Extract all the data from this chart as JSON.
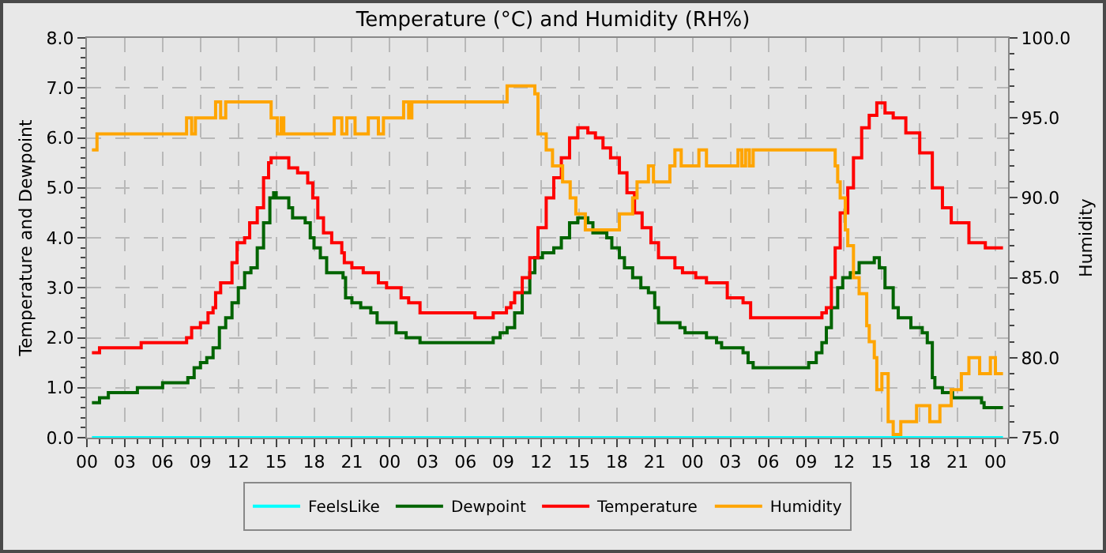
{
  "chart_data": {
    "type": "step",
    "title": "Temperature (°C) and Humidity (RH%)",
    "ylabel": "Temperature and Dewpoint",
    "y2label": "Humidity",
    "xlim": [
      0,
      73
    ],
    "xticks": [
      {
        "value": 0,
        "label": "00"
      },
      {
        "value": 3,
        "label": "03"
      },
      {
        "value": 6,
        "label": "06"
      },
      {
        "value": 9,
        "label": "09"
      },
      {
        "value": 12,
        "label": "12"
      },
      {
        "value": 15,
        "label": "15"
      },
      {
        "value": 18,
        "label": "18"
      },
      {
        "value": 21,
        "label": "21"
      },
      {
        "value": 24,
        "label": "00"
      },
      {
        "value": 27,
        "label": "03"
      },
      {
        "value": 30,
        "label": "06"
      },
      {
        "value": 33,
        "label": "09"
      },
      {
        "value": 36,
        "label": "12"
      },
      {
        "value": 39,
        "label": "15"
      },
      {
        "value": 42,
        "label": "18"
      },
      {
        "value": 45,
        "label": "21"
      },
      {
        "value": 48,
        "label": "00"
      },
      {
        "value": 51,
        "label": "03"
      },
      {
        "value": 54,
        "label": "06"
      },
      {
        "value": 57,
        "label": "09"
      },
      {
        "value": 60,
        "label": "12"
      },
      {
        "value": 63,
        "label": "15"
      },
      {
        "value": 66,
        "label": "18"
      },
      {
        "value": 69,
        "label": "21"
      },
      {
        "value": 72,
        "label": "00"
      }
    ],
    "ylim": [
      0,
      8
    ],
    "yticks": [
      {
        "value": 0,
        "label": "0.0"
      },
      {
        "value": 1,
        "label": "1.0"
      },
      {
        "value": 2,
        "label": "2.0"
      },
      {
        "value": 3,
        "label": "3.0"
      },
      {
        "value": 4,
        "label": "4.0"
      },
      {
        "value": 5,
        "label": "5.0"
      },
      {
        "value": 6,
        "label": "6.0"
      },
      {
        "value": 7,
        "label": "7.0"
      },
      {
        "value": 8,
        "label": "8.0"
      }
    ],
    "y2lim": [
      75,
      100
    ],
    "y2ticks": [
      {
        "value": 75,
        "label": "75.0"
      },
      {
        "value": 80,
        "label": "80.0"
      },
      {
        "value": 85,
        "label": "85.0"
      },
      {
        "value": 90,
        "label": "90.0"
      },
      {
        "value": 95,
        "label": "95.0"
      },
      {
        "value": 100,
        "label": "100.0"
      }
    ],
    "grid": true,
    "legend": "bottom",
    "series": [
      {
        "name": "FeelsLike",
        "color": "#00ffff",
        "x": [
          0.4,
          72.6
        ],
        "values": [
          0,
          0
        ]
      },
      {
        "name": "Dewpoint",
        "color": "#006400",
        "x": [
          0.4,
          1.0,
          1.7,
          4,
          6,
          8,
          8.5,
          9,
          9.5,
          10,
          10.5,
          11,
          11.5,
          12,
          12.5,
          13,
          13.5,
          14,
          14.5,
          14.8,
          15,
          16,
          16.3,
          17.3,
          17.7,
          18,
          18.5,
          19,
          20.3,
          20.5,
          21,
          21.7,
          22.5,
          23,
          24.5,
          25.3,
          26.4,
          32.2,
          32.75,
          33.3,
          33.9,
          34.5,
          35.1,
          35.5,
          36.1,
          37,
          37.6,
          38.25,
          38.9,
          39.7,
          40.1,
          41.2,
          41.6,
          42.2,
          42.6,
          43.25,
          43.9,
          44.5,
          45,
          45.3,
          47,
          47.4,
          49.1,
          49.9,
          50.3,
          52,
          52.4,
          52.8,
          57.2,
          57.8,
          58.25,
          58.6,
          59,
          59.5,
          59.9,
          60.5,
          61.2,
          62.4,
          62.8,
          63.25,
          63.9,
          64.3,
          65.3,
          66.2,
          66.6,
          67,
          67.2,
          67.8,
          68.6,
          70.9,
          71.1,
          72.6
        ],
        "values": [
          0.7,
          0.8,
          0.9,
          1.0,
          1.1,
          1.2,
          1.4,
          1.5,
          1.6,
          1.8,
          2.2,
          2.4,
          2.7,
          3.0,
          3.3,
          3.4,
          3.8,
          4.3,
          4.8,
          4.9,
          4.8,
          4.6,
          4.4,
          4.3,
          4.0,
          3.8,
          3.6,
          3.3,
          3.2,
          2.8,
          2.7,
          2.6,
          2.5,
          2.3,
          2.1,
          2.0,
          1.9,
          2.0,
          2.1,
          2.2,
          2.5,
          2.9,
          3.3,
          3.6,
          3.7,
          3.8,
          4.0,
          4.3,
          4.4,
          4.3,
          4.1,
          4.0,
          3.8,
          3.6,
          3.4,
          3.2,
          3.0,
          2.9,
          2.6,
          2.3,
          2.2,
          2.1,
          2.0,
          1.9,
          1.8,
          1.7,
          1.5,
          1.4,
          1.5,
          1.7,
          1.9,
          2.2,
          2.6,
          3.0,
          3.2,
          3.3,
          3.5,
          3.6,
          3.4,
          3.0,
          2.6,
          2.4,
          2.2,
          2.1,
          1.9,
          1.2,
          1.0,
          0.9,
          0.8,
          0.7,
          0.6,
          0.6
        ]
      },
      {
        "name": "Temperature",
        "color": "#ff0000",
        "x": [
          0.4,
          1.0,
          4.3,
          7.9,
          8.3,
          9.0,
          9.6,
          10,
          10.2,
          10.6,
          11.5,
          11.9,
          12.5,
          12.9,
          13.5,
          14,
          14.4,
          14.6,
          16,
          16.7,
          17.5,
          17.9,
          18.3,
          18.75,
          19.4,
          20.2,
          20.4,
          21,
          21.9,
          23.1,
          23.75,
          24.9,
          25.5,
          26.4,
          30.75,
          32.2,
          33.25,
          33.6,
          33.9,
          34.5,
          35.1,
          35.75,
          36.4,
          37,
          37.6,
          38.25,
          38.9,
          39.7,
          40.3,
          40.9,
          41.5,
          42.2,
          42.8,
          43.4,
          44,
          44.7,
          45.3,
          46.6,
          47.2,
          48.25,
          49.1,
          50.75,
          52,
          52.6,
          58.25,
          58.6,
          59,
          59.3,
          59.7,
          60.3,
          60.75,
          61.4,
          62,
          62.6,
          63.25,
          63.9,
          64.9,
          66,
          67,
          67.8,
          68.5,
          69.9,
          71.2,
          72.6
        ],
        "values": [
          1.7,
          1.8,
          1.9,
          2.0,
          2.2,
          2.3,
          2.5,
          2.6,
          2.9,
          3.1,
          3.5,
          3.9,
          4.0,
          4.3,
          4.6,
          5.2,
          5.5,
          5.6,
          5.4,
          5.3,
          5.1,
          4.8,
          4.4,
          4.1,
          3.9,
          3.7,
          3.5,
          3.4,
          3.3,
          3.1,
          3.0,
          2.8,
          2.7,
          2.5,
          2.4,
          2.5,
          2.6,
          2.7,
          2.9,
          3.2,
          3.6,
          4.2,
          4.8,
          5.2,
          5.6,
          6.0,
          6.2,
          6.1,
          6.0,
          5.8,
          5.6,
          5.3,
          4.9,
          4.5,
          4.2,
          3.9,
          3.6,
          3.4,
          3.3,
          3.2,
          3.1,
          2.8,
          2.7,
          2.4,
          2.5,
          2.6,
          3.2,
          3.8,
          4.5,
          5.0,
          5.6,
          6.2,
          6.45,
          6.7,
          6.5,
          6.4,
          6.1,
          5.7,
          5.0,
          4.6,
          4.3,
          3.9,
          3.8,
          3.8
        ]
      },
      {
        "name": "Humidity",
        "color": "#ffa500",
        "axis": "y2",
        "x": [
          0.4,
          0.8,
          7.9,
          8.3,
          8.6,
          10.2,
          10.6,
          11,
          14.6,
          15.1,
          15.4,
          15.6,
          19.6,
          20.2,
          20.6,
          21.25,
          22.3,
          23.1,
          23.5,
          25.1,
          25.5,
          25.75,
          33.3,
          35.5,
          35.75,
          36.4,
          36.9,
          37.7,
          38.3,
          38.75,
          39.5,
          42.2,
          43.25,
          43.6,
          44.5,
          44.9,
          46.2,
          46.6,
          47.1,
          48.5,
          49.1,
          51.6,
          51.9,
          52.2,
          52.5,
          52.8,
          59.3,
          59.5,
          59.7,
          60.1,
          60.3,
          60.75,
          61.2,
          61.8,
          62,
          62.4,
          62.6,
          63,
          63.5,
          63.9,
          64.5,
          65.75,
          66.8,
          67.6,
          68.5,
          69.3,
          69.9,
          70.75,
          71.6,
          72,
          72.6
        ],
        "values": [
          93,
          94,
          95,
          94,
          95,
          96,
          95,
          96,
          95,
          94,
          95,
          94,
          95,
          94,
          95,
          94,
          95,
          94,
          95,
          96,
          95,
          96,
          97,
          96.5,
          94,
          93,
          92,
          91,
          90,
          89,
          88,
          89,
          90,
          91,
          92,
          91,
          92,
          93,
          92,
          93,
          92,
          93,
          92,
          93,
          92,
          93,
          92,
          91,
          90,
          88,
          87,
          85,
          84,
          82,
          81,
          80,
          78,
          79,
          76,
          75.2,
          76,
          77,
          76,
          77,
          78,
          79,
          80,
          79,
          80,
          79,
          79
        ]
      }
    ]
  }
}
